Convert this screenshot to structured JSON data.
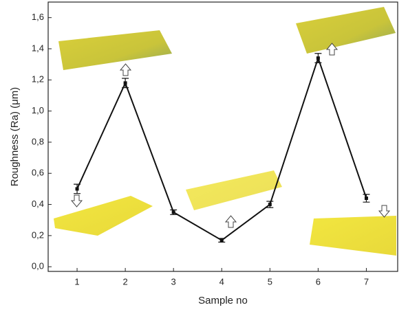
{
  "chart_data": {
    "type": "line",
    "x_label": "Sample no",
    "y_label": "Roughness (Ra) (μm)",
    "x": [
      1,
      2,
      3,
      4,
      5,
      6,
      7
    ],
    "values": [
      0.5,
      1.18,
      0.35,
      0.17,
      0.4,
      1.34,
      0.44
    ],
    "errors": [
      0.03,
      0.03,
      0.015,
      0.012,
      0.02,
      0.03,
      0.025
    ],
    "color": "#111111",
    "xlim": [
      0.4,
      7.65
    ],
    "xticks": [
      1,
      2,
      3,
      4,
      5,
      6,
      7
    ],
    "ylim": [
      -0.03,
      1.7
    ],
    "yticks": [
      {
        "value": 0,
        "label": "0,0"
      },
      {
        "value": 0.2,
        "label": "0,2"
      },
      {
        "value": 0.4,
        "label": "0,4"
      },
      {
        "value": 0.6,
        "label": "0,6"
      },
      {
        "value": 0.8,
        "label": "0,8"
      },
      {
        "value": 1.0,
        "label": "1,0"
      },
      {
        "value": 1.2,
        "label": "1,2"
      },
      {
        "value": 1.4,
        "label": "1,4"
      },
      {
        "value": 1.6,
        "label": "1,6"
      }
    ]
  }
}
